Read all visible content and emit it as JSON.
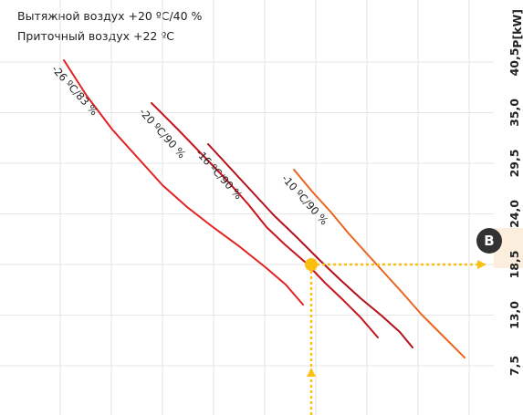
{
  "header": {
    "line1": "Вытяжной воздух +20 ºC/40 %",
    "line2": "Приточный воздух +22 ºC"
  },
  "badge": {
    "label": "B"
  },
  "chart_data": {
    "type": "line",
    "y_axis": {
      "unit_label": "P[kW]",
      "ticks": [
        "7,5",
        "13,0",
        "18,5",
        "24,0",
        "29,5",
        "35,0",
        "40,5"
      ]
    },
    "series": [
      {
        "name": "-26 ºC/83 %",
        "color": "#e32122",
        "points": [
          [
            70,
            66
          ],
          [
            95,
            105
          ],
          [
            123,
            142
          ],
          [
            150,
            172
          ],
          [
            178,
            203
          ],
          [
            205,
            227
          ],
          [
            232,
            248
          ],
          [
            262,
            270
          ],
          [
            292,
            294
          ],
          [
            313,
            312
          ],
          [
            332,
            334
          ]
        ]
      },
      {
        "name": "-20 ºC/90 %",
        "color": "#c8141c",
        "points": [
          [
            166,
            113
          ],
          [
            195,
            142
          ],
          [
            222,
            170
          ],
          [
            248,
            197
          ],
          [
            272,
            224
          ],
          [
            292,
            249
          ],
          [
            312,
            268
          ],
          [
            335,
            288
          ],
          [
            356,
            310
          ],
          [
            376,
            329
          ],
          [
            395,
            348
          ],
          [
            414,
            370
          ]
        ]
      },
      {
        "name": "-16 ºC/90 %",
        "color": "#b3101a",
        "points": [
          [
            228,
            158
          ],
          [
            252,
            184
          ],
          [
            276,
            210
          ],
          [
            300,
            236
          ],
          [
            325,
            260
          ],
          [
            350,
            285
          ],
          [
            372,
            306
          ],
          [
            395,
            327
          ],
          [
            418,
            346
          ],
          [
            438,
            364
          ],
          [
            452,
            381
          ]
        ]
      },
      {
        "name": "-10 ºC/90 %",
        "color": "#e8651e",
        "points": [
          [
            322,
            186
          ],
          [
            342,
            210
          ],
          [
            362,
            232
          ],
          [
            382,
            256
          ],
          [
            400,
            276
          ],
          [
            420,
            298
          ],
          [
            440,
            320
          ],
          [
            462,
            345
          ],
          [
            487,
            370
          ],
          [
            509,
            392
          ]
        ]
      }
    ],
    "operating_point": {
      "series": "-16 ºC/90 %",
      "y_value": 18.5,
      "color": "#fbbf12"
    },
    "grid": true
  }
}
